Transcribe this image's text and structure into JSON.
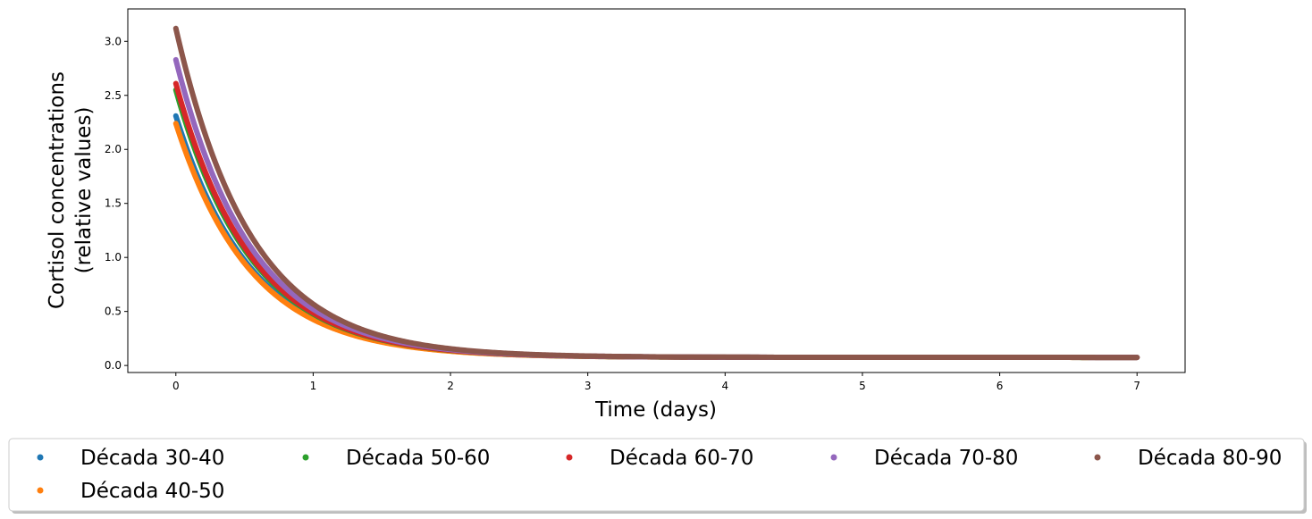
{
  "chart_data": {
    "type": "scatter",
    "xlabel": "Time (days)",
    "ylabel_lines": [
      "Cortisol concentrations",
      "(relative values)"
    ],
    "xlim": [
      -0.35,
      7.35
    ],
    "ylim": [
      -0.065,
      3.3
    ],
    "x_ticks": [
      0,
      1,
      2,
      3,
      4,
      5,
      6,
      7
    ],
    "y_ticks": [
      0.0,
      0.5,
      1.0,
      1.5,
      2.0,
      2.5,
      3.0
    ],
    "x_tick_labels": [
      "0",
      "1",
      "2",
      "3",
      "4",
      "5",
      "6",
      "7"
    ],
    "y_tick_labels": [
      "0.0",
      "0.5",
      "1.0",
      "1.5",
      "2.0",
      "2.5",
      "3.0"
    ],
    "grid": false,
    "legend_position": "bottom-center, outside plot",
    "legend_columns": 5,
    "series_model": {
      "form": "y = baseline + (start - baseline) * exp(-decay * x), sampled densely from x = 0 to 7",
      "baseline": 0.075,
      "decay": 1.82
    },
    "series": [
      {
        "name": "Década 30-40",
        "color": "#1f77b4",
        "start": 2.31
      },
      {
        "name": "Década 40-50",
        "color": "#ff7f0e",
        "start": 2.24
      },
      {
        "name": "Década 50-60",
        "color": "#2ca02c",
        "start": 2.55
      },
      {
        "name": "Década 60-70",
        "color": "#d62728",
        "start": 2.61
      },
      {
        "name": "Década 70-80",
        "color": "#9467bd",
        "start": 2.83
      },
      {
        "name": "Década 80-90",
        "color": "#8c564b",
        "start": 3.12
      }
    ]
  }
}
